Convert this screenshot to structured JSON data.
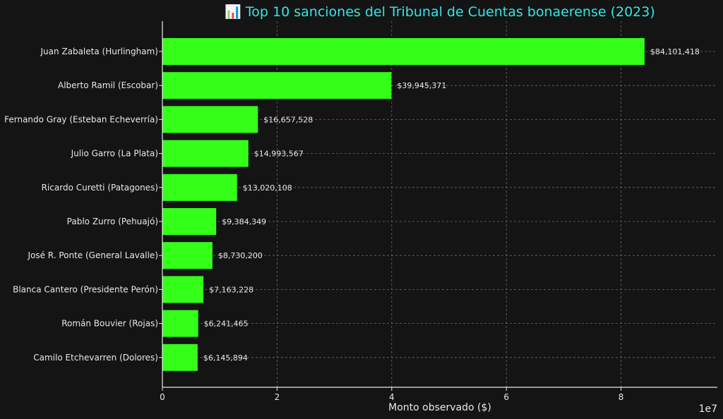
{
  "chart_data": {
    "type": "bar",
    "orientation": "horizontal",
    "title": "📊 Top 10 sanciones del Tribunal de Cuentas bonaerense (2023)",
    "xlabel": "Monto observado ($)",
    "ylabel": "",
    "x_offset_label": "1e7",
    "xlim": [
      0,
      96800000
    ],
    "xticks": [
      0,
      20000000,
      40000000,
      60000000,
      80000000
    ],
    "xtick_labels": [
      "0",
      "2",
      "4",
      "6",
      "8"
    ],
    "grid": true,
    "bar_color": "#33ff19",
    "title_color": "#33e6e6",
    "background": "#141414",
    "categories": [
      "Juan Zabaleta (Hurlingham)",
      "Alberto Ramil (Escobar)",
      "Fernando Gray (Esteban Echeverría)",
      "Julio Garro (La Plata)",
      "Ricardo Curetti (Patagones)",
      "Pablo Zurro (Pehuajó)",
      "José R. Ponte (General Lavalle)",
      "Blanca Cantero (Presidente Perón)",
      "Román Bouvier (Rojas)",
      "Camilo Etchevarren (Dolores)"
    ],
    "values": [
      84101418,
      39945371,
      16657528,
      14993567,
      13020108,
      9384349,
      8730200,
      7163228,
      6241465,
      6145894
    ],
    "value_labels": [
      "$84,101,418",
      "$39,945,371",
      "$16,657,528",
      "$14,993,567",
      "$13,020,108",
      "$9,384,349",
      "$8,730,200",
      "$7,163,228",
      "$6,241,465",
      "$6,145,894"
    ]
  }
}
